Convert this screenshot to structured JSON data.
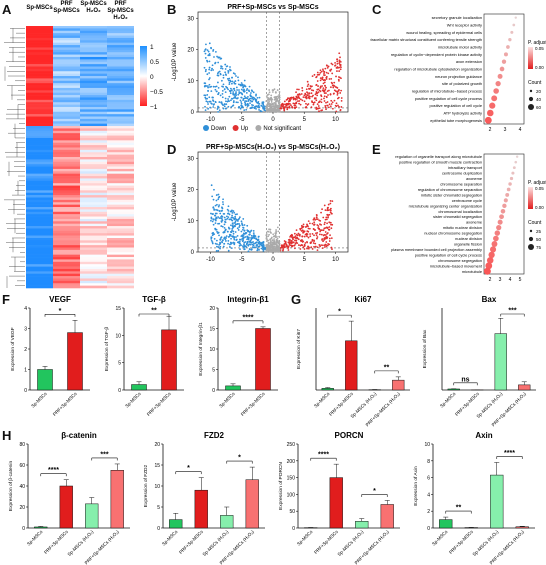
{
  "panels": {
    "A": "A",
    "B": "B",
    "C": "C",
    "D": "D",
    "E": "E",
    "F": "F",
    "G": "G",
    "H": "H"
  },
  "heatmap": {
    "columns": [
      "Sp-MSCs",
      "PRF\nSp-MSCs",
      "Sp-MSCs\nH₂O₂",
      "PRF\nSp-MSCs\nH₂O₂"
    ],
    "col_labels": [
      [
        "Sp-MSCs"
      ],
      [
        "PRF",
        "Sp-MSCs"
      ],
      [
        "Sp-MSCs",
        "H₂O₂"
      ],
      [
        "PRF",
        "Sp-MSCs",
        "H₂O₂"
      ]
    ],
    "legend_ticks": [
      "1",
      "0.5",
      "0",
      "−0.5",
      "−1"
    ],
    "colors": {
      "high": "#ff2020",
      "mid": "#ffffff",
      "low": "#1e90ff"
    }
  },
  "volcano_B": {
    "title": "PRF+Sp-MSCs vs Sp-MSCs",
    "ylabel": "-Log10P value",
    "xticks": [
      "-10",
      "-5",
      "0",
      "5",
      "10"
    ],
    "yticks": [
      "0",
      "10",
      "20",
      "30"
    ],
    "legend": [
      {
        "label": "Down",
        "color": "#2f8fd8"
      },
      {
        "label": "Up",
        "color": "#e03030"
      },
      {
        "label": "Not significant",
        "color": "#aaaaaa"
      }
    ]
  },
  "volcano_D": {
    "title": "PRF+Sp-MSCs(H₂O₂) vs Sp-MSCs(H₂O₂)",
    "ylabel": "-Log10P value",
    "xticks": [
      "-10",
      "-5",
      "0",
      "5",
      "10"
    ],
    "yticks": [
      "0",
      "10",
      "20",
      "30"
    ]
  },
  "enrich_C": {
    "terms": [
      "secretory granule localization",
      "Wnt receptor activity",
      "wound healing, spreading of epidermal cells",
      "extracellular matrix structural constituent conferring tensile strength",
      "microtubule motor activity",
      "regulation of cyclin−dependent protein kinase activity",
      "axon extension",
      "regulation of microtubule cytoskeleton organization",
      "neuron projection guidance",
      "site of polarized growth",
      "regulation of microtubule−based process",
      "positive regulation of cell cycle process",
      "positive regulation of cell cycle",
      "ATP hydrolysis activity",
      "epithelial tube morphogenesis"
    ],
    "xticks": [
      "2",
      "3",
      "4"
    ],
    "padj_title": "P. adjust",
    "padj_ticks": [
      "0.05",
      "0.00"
    ],
    "count_title": "Count",
    "count_ticks": [
      "20",
      "40",
      "60"
    ]
  },
  "enrich_E": {
    "terms": [
      "regulation of organelle transport along microtubule",
      "positive regulation of smooth muscle contraction",
      "intraciliary transport",
      "centrosome duplication",
      "axoneme",
      "chromosome separation",
      "regulation of chromosome separation",
      "mitotic sister chromatid segregation",
      "centrosome cycle",
      "microtubule organizing center organization",
      "chromosomal localization",
      "sister chromatid segregation",
      "axoneme",
      "mitotic nuclear division",
      "nuclear chromosome segregation",
      "nuclear division",
      "organelle fission",
      "plasma membrane bounded cell projection assembly",
      "positive regulation of cell cycle process",
      "chromosome segregation",
      "microtubule−based movement",
      "microtubule"
    ],
    "xticks": [
      "2",
      "3",
      "4",
      "5"
    ],
    "padj_title": "P. adjust",
    "padj_ticks": [
      "0.05",
      "0.00"
    ],
    "count_title": "Count",
    "count_ticks": [
      "25",
      "50",
      "75"
    ]
  },
  "bars_F": [
    {
      "title": "VEGF",
      "ylabel": "Expression of VEGF",
      "groups": [
        "Sp-MSCs",
        "PRF+Sp-MSCs"
      ],
      "values": [
        1.0,
        2.8
      ],
      "errors": [
        0.15,
        0.6
      ],
      "ymax": 4,
      "yticks": [
        "0",
        "1",
        "2",
        "3",
        "4"
      ],
      "sig": "*",
      "colors": [
        "#22c55e",
        "#e11d1d"
      ]
    },
    {
      "title": "TGF-β",
      "ylabel": "Expression of TGF-β",
      "groups": [
        "Sp-MSCs",
        "PRF+Sp-MSCs"
      ],
      "values": [
        1.0,
        11
      ],
      "errors": [
        0.5,
        2.5
      ],
      "ymax": 15,
      "yticks": [
        "0",
        "5",
        "10",
        "15"
      ],
      "sig": "**",
      "colors": [
        "#22c55e",
        "#e11d1d"
      ]
    },
    {
      "title": "Integrin-β1",
      "ylabel": "Expression of Integrin-β1",
      "groups": [
        "Sp-MSCs",
        "PRF+Sp-MSCs"
      ],
      "values": [
        1.0,
        15
      ],
      "errors": [
        0.5,
        0.4
      ],
      "ymax": 20,
      "yticks": [
        "0",
        "5",
        "10",
        "15",
        "20"
      ],
      "sig": "****",
      "colors": [
        "#22c55e",
        "#e11d1d"
      ]
    }
  ],
  "bars_G": [
    {
      "title": "Ki67",
      "ylabel": "Expression of Ki67",
      "groups": [
        "Sp-MSCs",
        "PRF+Sp-MSCs",
        "Sp-MSCs (H₂O₂)",
        "PRF+Sp-MSCs (H₂O₂)"
      ],
      "values": [
        1.0,
        30,
        0.2,
        6
      ],
      "errors": [
        0.5,
        12,
        0.1,
        2
      ],
      "ymax": 50,
      "sigs": [
        {
          "label": "*",
          "from": 0,
          "to": 1
        },
        {
          "label": "**",
          "from": 2,
          "to": 3
        }
      ],
      "colors": [
        "#22c55e",
        "#e11d1d",
        "#86efac",
        "#f87171"
      ]
    },
    {
      "title": "Bax",
      "ylabel": "Expression of Bax",
      "groups": [
        "Sp-MSCs",
        "PRF+Sp-MSCs",
        "Sp-MSCs (H₂O₂)",
        "PRF+Sp-MSCs (H₂O₂)"
      ],
      "values": [
        1.0,
        0.1,
        55,
        5
      ],
      "errors": [
        0.2,
        0.05,
        15,
        3
      ],
      "ymax": 80,
      "sigs": [
        {
          "label": "ns",
          "from": 0,
          "to": 1
        },
        {
          "label": "***",
          "from": 2,
          "to": 3
        }
      ],
      "colors": [
        "#22c55e",
        "#e11d1d",
        "#86efac",
        "#f87171"
      ]
    }
  ],
  "bars_H": [
    {
      "title": "β-catenin",
      "ylabel": "Expression of β-catenin",
      "groups": [
        "Sp-MSCs",
        "PRF+Sp-MSCs",
        "Sp-MSCs (H₂O₂)",
        "PRF+Sp-MSCs (H₂O₂)"
      ],
      "values": [
        1,
        40,
        23,
        55
      ],
      "errors": [
        0.5,
        6,
        6,
        6
      ],
      "ymax": 80,
      "yticks": [
        "0",
        "20",
        "40",
        "60",
        "80"
      ],
      "sigs": [
        {
          "label": "****",
          "from": 0,
          "to": 1
        },
        {
          "label": "***",
          "from": 2,
          "to": 3
        }
      ],
      "colors": [
        "#22c55e",
        "#e11d1d",
        "#86efac",
        "#f87171"
      ]
    },
    {
      "title": "FZD2",
      "ylabel": "Expression of FZD2",
      "groups": [
        "Sp-MSCs",
        "PRF+Sp-MSCs",
        "Sp-MSCs (H₂O₂)",
        "PRF+Sp-MSCs (H₂O₂)"
      ],
      "values": [
        2,
        9,
        3,
        11.5
      ],
      "errors": [
        1.5,
        3,
        2,
        3
      ],
      "ymax": 20,
      "yticks": [
        "0",
        "5",
        "10",
        "15",
        "20"
      ],
      "sigs": [
        {
          "label": "*",
          "from": 0,
          "to": 1
        },
        {
          "label": "*",
          "from": 2,
          "to": 3
        }
      ],
      "colors": [
        "#22c55e",
        "#e11d1d",
        "#86efac",
        "#f87171"
      ]
    },
    {
      "title": "PORCN",
      "ylabel": "Expression of PORCN",
      "groups": [
        "Sp-MSCs",
        "PRF+Sp-MSCs",
        "Sp-MSCs (H₂O₂)",
        "PRF+Sp-MSCs (H₂O₂)"
      ],
      "values": [
        1,
        150,
        20,
        70
      ],
      "errors": [
        0.5,
        40,
        8,
        12
      ],
      "ymax": 250,
      "yticks": [
        "0",
        "50",
        "100",
        "150",
        "200",
        "250"
      ],
      "sigs": [
        {
          "label": "****",
          "from": 0,
          "to": 1
        },
        {
          "label": "*",
          "from": 2,
          "to": 3
        }
      ],
      "colors": [
        "#22c55e",
        "#e11d1d",
        "#86efac",
        "#f87171"
      ]
    },
    {
      "title": "Axin",
      "ylabel": "Expression of Axin",
      "groups": [
        "Sp-MSCs",
        "PRF+Sp-MSCs",
        "Sp-MSCs (H₂O₂)",
        "PRF+Sp-MSCs (H₂O₂)"
      ],
      "values": [
        1,
        0.05,
        6.3,
        0.15
      ],
      "errors": [
        0.3,
        0.02,
        1.5,
        0.05
      ],
      "ymax": 10,
      "yticks": [
        "0",
        "2",
        "4",
        "6",
        "8",
        "10"
      ],
      "sigs": [
        {
          "label": "**",
          "from": 0,
          "to": 1
        },
        {
          "label": "****",
          "from": 2,
          "to": 3
        }
      ],
      "colors": [
        "#22c55e",
        "#e11d1d",
        "#86efac",
        "#f87171"
      ]
    }
  ]
}
